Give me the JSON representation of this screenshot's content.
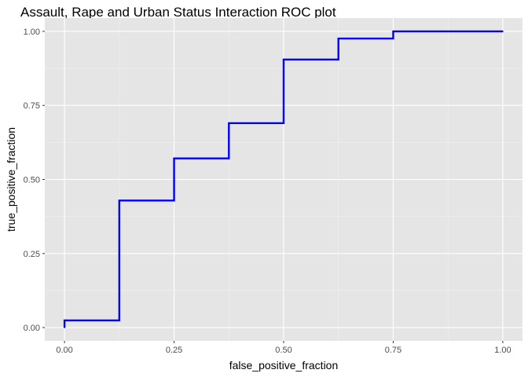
{
  "chart_data": {
    "type": "line",
    "title": "Assault, Rape and Urban Status Interaction ROC plot",
    "xlabel": "false_positive_fraction",
    "ylabel": "true_positive_fraction",
    "xlim": [
      -0.045,
      1.045
    ],
    "ylim": [
      -0.045,
      1.045
    ],
    "x_ticks": [
      0,
      0.25,
      0.5,
      0.75,
      1
    ],
    "x_tick_labels": [
      "0.00",
      "0.25",
      "0.50",
      "0.75",
      "1.00"
    ],
    "y_ticks": [
      0,
      0.25,
      0.5,
      0.75,
      1
    ],
    "y_tick_labels": [
      "0.00",
      "0.25",
      "0.50",
      "0.75",
      "1.00"
    ],
    "grid": true,
    "series": [
      {
        "color": "#0000ff",
        "step": true,
        "x": [
          0,
          0,
          0.125,
          0.125,
          0.25,
          0.25,
          0.375,
          0.375,
          0.5,
          0.5,
          0.625,
          0.625,
          0.75,
          0.75,
          1
        ],
        "y": [
          0,
          0.024,
          0.024,
          0.429,
          0.429,
          0.571,
          0.571,
          0.69,
          0.69,
          0.905,
          0.905,
          0.976,
          0.976,
          1,
          1
        ]
      }
    ],
    "colors": {
      "panel_background": "#e5e5e5",
      "grid_major": "#ffffff",
      "grid_minor": "#f2f2f2",
      "tick_label": "#4d4d4d",
      "line": "#0000ff"
    }
  }
}
